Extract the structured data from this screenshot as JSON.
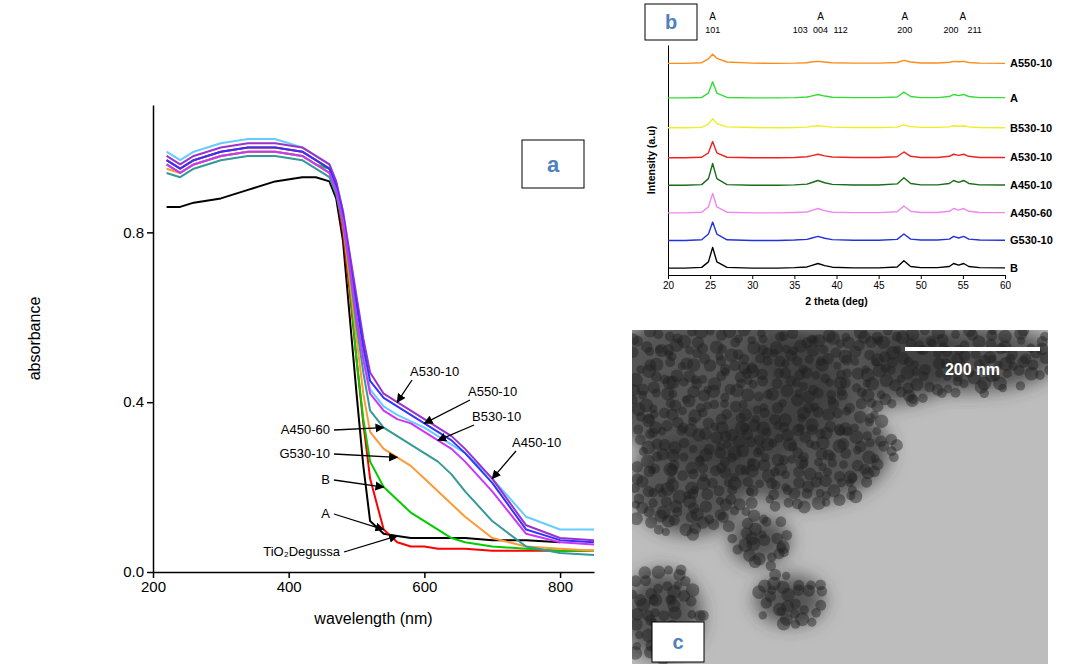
{
  "chart_data": [
    {
      "type": "line",
      "panel_label": "a",
      "x_label": "wavelength (nm)",
      "y_label": "absorbance",
      "x": [
        220,
        240,
        260,
        300,
        340,
        380,
        420,
        440,
        460,
        470,
        480,
        490,
        500,
        510,
        520,
        540,
        560,
        580,
        600,
        620,
        640,
        660,
        700,
        750,
        800,
        850
      ],
      "xlim": [
        200,
        850
      ],
      "xticks": [
        200,
        400,
        600,
        800
      ],
      "ylim": [
        0,
        1.1
      ],
      "yticks": [
        {
          "value": 0,
          "label": "0.0"
        },
        0.4,
        0.8
      ],
      "series": [
        {
          "name": "TiO₂Degussa",
          "color": "#000000",
          "values": [
            0.86,
            0.86,
            0.87,
            0.88,
            0.9,
            0.92,
            0.93,
            0.93,
            0.92,
            0.88,
            0.78,
            0.6,
            0.42,
            0.25,
            0.12,
            0.09,
            0.085,
            0.08,
            0.08,
            0.08,
            0.08,
            0.08,
            0.075,
            0.075,
            0.07,
            null
          ]
        },
        {
          "name": "A",
          "color": "#ff0000",
          "values": [
            0.97,
            0.95,
            0.97,
            0.99,
            1.0,
            1.0,
            0.99,
            0.97,
            0.95,
            0.9,
            0.8,
            0.66,
            0.5,
            0.35,
            0.22,
            0.1,
            0.07,
            0.06,
            0.06,
            0.055,
            0.055,
            0.055,
            0.05,
            0.05,
            0.05,
            0.05
          ]
        },
        {
          "name": "B",
          "color": "#00cc00",
          "values": [
            0.96,
            0.94,
            0.96,
            0.98,
            0.99,
            0.99,
            0.98,
            0.96,
            0.95,
            0.91,
            0.82,
            0.68,
            0.5,
            0.36,
            0.26,
            0.2,
            0.17,
            0.14,
            0.12,
            0.1,
            0.08,
            0.07,
            0.06,
            0.055,
            0.05,
            0.05
          ]
        },
        {
          "name": "G530-10",
          "color": "#ff9933",
          "values": [
            0.95,
            0.94,
            0.96,
            0.98,
            0.99,
            0.99,
            0.98,
            0.96,
            0.94,
            0.9,
            0.82,
            0.69,
            0.55,
            0.42,
            0.33,
            0.29,
            0.27,
            0.25,
            0.22,
            0.19,
            0.16,
            0.13,
            0.08,
            0.06,
            0.055,
            0.05
          ]
        },
        {
          "name": "A450-60",
          "color": "#339999",
          "values": [
            0.94,
            0.93,
            0.95,
            0.97,
            0.98,
            0.98,
            0.97,
            0.95,
            0.93,
            0.89,
            0.82,
            0.71,
            0.58,
            0.47,
            0.38,
            0.34,
            0.32,
            0.3,
            0.28,
            0.26,
            0.23,
            0.19,
            0.12,
            0.06,
            0.045,
            0.04
          ]
        },
        {
          "name": "A450-10",
          "color": "#66ccff",
          "values": [
            0.99,
            0.97,
            0.99,
            1.01,
            1.02,
            1.02,
            1.0,
            0.98,
            0.96,
            0.92,
            0.85,
            0.74,
            0.62,
            0.51,
            0.43,
            0.39,
            0.37,
            0.355,
            0.34,
            0.32,
            0.3,
            0.28,
            0.22,
            0.13,
            0.1,
            0.1
          ]
        },
        {
          "name": "A530-10",
          "color": "#9933cc",
          "values": [
            0.98,
            0.96,
            0.98,
            1.0,
            1.01,
            1.01,
            1.0,
            0.98,
            0.96,
            0.92,
            0.85,
            0.75,
            0.65,
            0.55,
            0.47,
            0.42,
            0.4,
            0.38,
            0.36,
            0.34,
            0.32,
            0.29,
            0.22,
            0.11,
            0.08,
            0.075
          ]
        },
        {
          "name": "A550-10",
          "color": "#3333ff",
          "values": [
            0.97,
            0.95,
            0.97,
            0.99,
            1.0,
            1.0,
            0.99,
            0.97,
            0.95,
            0.91,
            0.84,
            0.73,
            0.63,
            0.53,
            0.45,
            0.41,
            0.39,
            0.37,
            0.35,
            0.33,
            0.31,
            0.28,
            0.21,
            0.1,
            0.075,
            0.07
          ]
        },
        {
          "name": "B530-10",
          "color": "#cc33ff",
          "values": [
            0.96,
            0.94,
            0.96,
            0.98,
            0.99,
            0.99,
            0.98,
            0.96,
            0.94,
            0.9,
            0.83,
            0.72,
            0.6,
            0.5,
            0.42,
            0.38,
            0.36,
            0.35,
            0.33,
            0.31,
            0.29,
            0.26,
            0.19,
            0.09,
            0.07,
            0.065
          ]
        }
      ]
    },
    {
      "type": "line",
      "panel_label": "b",
      "x_label": "2 theta (deg)",
      "y_label": "Intensity (a.u)",
      "x": [
        20,
        22,
        24,
        24.8,
        25.3,
        25.8,
        27,
        30,
        33,
        35,
        36.5,
        37,
        37.8,
        38.6,
        39.5,
        42,
        45,
        47.2,
        48,
        48.8,
        50,
        52,
        53.4,
        53.9,
        54.5,
        55.1,
        55.7,
        57,
        60
      ],
      "xlim": [
        20,
        60
      ],
      "xticks": [
        20,
        25,
        30,
        35,
        40,
        45,
        50,
        55,
        60
      ],
      "ylim": [
        0,
        100
      ],
      "yticks": [],
      "tick_labels": "x",
      "peak_labels": [
        {
          "text": "A",
          "x": 25.3
        },
        {
          "text": "A",
          "x": 38.1
        },
        {
          "text": "A",
          "x": 48.1
        },
        {
          "text": "A",
          "x": 55
        }
      ],
      "hkl_labels": [
        {
          "text": "101",
          "x": 25.3
        },
        {
          "text": "103",
          "x": 35.7
        },
        {
          "text": "004",
          "x": 38.1
        },
        {
          "text": "112",
          "x": 40.5
        },
        {
          "text": "200",
          "x": 48.1
        },
        {
          "text": "200",
          "x": 53.6
        },
        {
          "text": "211",
          "x": 56.4
        }
      ],
      "series": [
        {
          "name": "A550-10",
          "color": "#ff8c1a",
          "values": [
            92,
            92,
            92.3,
            94,
            96,
            94.2,
            92.6,
            92.1,
            92,
            92.1,
            92.3,
            92.6,
            92.9,
            92.6,
            92.3,
            92.1,
            92.1,
            92.4,
            93.3,
            92.6,
            92.2,
            92.2,
            92.5,
            92.9,
            92.7,
            92.9,
            92.4,
            92.1,
            92
          ]
        },
        {
          "name": "A",
          "color": "#33dd33",
          "values": [
            77,
            77,
            77.2,
            79.1,
            84,
            79.1,
            77.2,
            77,
            77,
            77.1,
            77.4,
            77.8,
            78.5,
            77.8,
            77.3,
            77.1,
            77.1,
            77.4,
            79.5,
            77.6,
            77.1,
            77.1,
            77.6,
            78.5,
            78,
            78.5,
            77.6,
            77.1,
            77.1
          ]
        },
        {
          "name": "B530-10",
          "color": "#eeee22",
          "values": [
            64,
            64,
            64.2,
            65.6,
            68,
            65.8,
            64.4,
            64.1,
            64,
            64.1,
            64.3,
            64.6,
            64.9,
            64.6,
            64.3,
            64.1,
            64.1,
            64.3,
            65.3,
            64.5,
            64.2,
            64.2,
            64.4,
            64.9,
            64.7,
            64.9,
            64.4,
            64.1,
            64
          ]
        },
        {
          "name": "A530-10",
          "color": "#ee2222",
          "values": [
            51,
            51,
            51.2,
            53.1,
            58,
            53.1,
            51.2,
            51,
            51,
            51.1,
            51.4,
            51.8,
            52.5,
            51.8,
            51.3,
            51.1,
            51.1,
            51.4,
            53.5,
            51.6,
            51.1,
            51.1,
            51.6,
            52.5,
            52,
            52.5,
            51.6,
            51.1,
            51.1
          ]
        },
        {
          "name": "A450-10",
          "color": "#1a6b1a",
          "values": [
            39,
            39,
            39.3,
            41.9,
            48.5,
            41.9,
            39.3,
            39,
            39,
            39.2,
            39.5,
            40.1,
            41.1,
            40.1,
            39.4,
            39.1,
            39.1,
            39.6,
            42.3,
            39.8,
            39.2,
            39.2,
            39.8,
            41.1,
            40.3,
            41.1,
            39.8,
            39.2,
            39.1
          ]
        },
        {
          "name": "A450-60",
          "color": "#ee88ee",
          "values": [
            27,
            27,
            27.3,
            29.6,
            35.5,
            29.6,
            27.3,
            27,
            27,
            27.2,
            27.4,
            28,
            28.9,
            28,
            27.3,
            27.1,
            27.1,
            27.5,
            30,
            27.7,
            27.2,
            27.2,
            27.7,
            28.9,
            28.2,
            28.9,
            27.7,
            27.2,
            27.1
          ]
        },
        {
          "name": "G530-10",
          "color": "#2233dd",
          "values": [
            15,
            15,
            15.3,
            17.8,
            23,
            17.8,
            15.3,
            15,
            15,
            15.2,
            15.5,
            16,
            16.8,
            16,
            15.4,
            15.1,
            15.1,
            15.5,
            17.8,
            15.6,
            15.2,
            15.2,
            15.6,
            16.8,
            16.1,
            16.8,
            15.6,
            15.2,
            15.1
          ]
        },
        {
          "name": "B",
          "color": "#000000",
          "values": [
            3,
            3,
            3.3,
            5.7,
            12,
            5.7,
            3.3,
            3,
            3,
            3.2,
            3.5,
            4.1,
            5,
            4.1,
            3.4,
            3.1,
            3.1,
            3.5,
            6.2,
            3.7,
            3.2,
            3.2,
            3.7,
            5,
            4.3,
            5,
            3.7,
            3.2,
            3.1
          ]
        }
      ]
    },
    {
      "type": "image",
      "panel_label": "c",
      "scale_bar": "200 nm"
    }
  ]
}
